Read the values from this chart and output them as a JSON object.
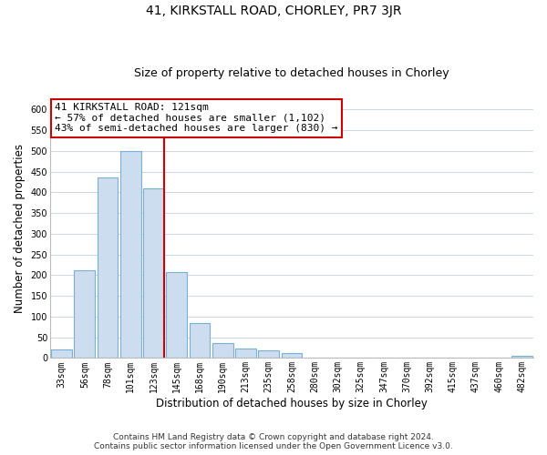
{
  "title": "41, KIRKSTALL ROAD, CHORLEY, PR7 3JR",
  "subtitle": "Size of property relative to detached houses in Chorley",
  "xlabel": "Distribution of detached houses by size in Chorley",
  "ylabel": "Number of detached properties",
  "bar_labels": [
    "33sqm",
    "56sqm",
    "78sqm",
    "101sqm",
    "123sqm",
    "145sqm",
    "168sqm",
    "190sqm",
    "213sqm",
    "235sqm",
    "258sqm",
    "280sqm",
    "302sqm",
    "325sqm",
    "347sqm",
    "370sqm",
    "392sqm",
    "415sqm",
    "437sqm",
    "460sqm",
    "482sqm"
  ],
  "bar_heights": [
    20,
    212,
    435,
    500,
    410,
    207,
    85,
    37,
    22,
    19,
    12,
    0,
    0,
    0,
    0,
    0,
    0,
    0,
    0,
    0,
    5
  ],
  "bar_color": "#ccddf0",
  "bar_edge_color": "#7aafd4",
  "vline_color": "#cc0000",
  "annotation_text": "41 KIRKSTALL ROAD: 121sqm\n← 57% of detached houses are smaller (1,102)\n43% of semi-detached houses are larger (830) →",
  "annotation_box_color": "white",
  "annotation_box_edge": "#cc0000",
  "ylim": [
    0,
    625
  ],
  "yticks": [
    0,
    50,
    100,
    150,
    200,
    250,
    300,
    350,
    400,
    450,
    500,
    550,
    600
  ],
  "footer_line1": "Contains HM Land Registry data © Crown copyright and database right 2024.",
  "footer_line2": "Contains public sector information licensed under the Open Government Licence v3.0.",
  "background_color": "#ffffff",
  "grid_color": "#c8d8ee",
  "title_fontsize": 10,
  "subtitle_fontsize": 9,
  "axis_label_fontsize": 8.5,
  "tick_fontsize": 7,
  "annotation_fontsize": 8,
  "footer_fontsize": 6.5
}
